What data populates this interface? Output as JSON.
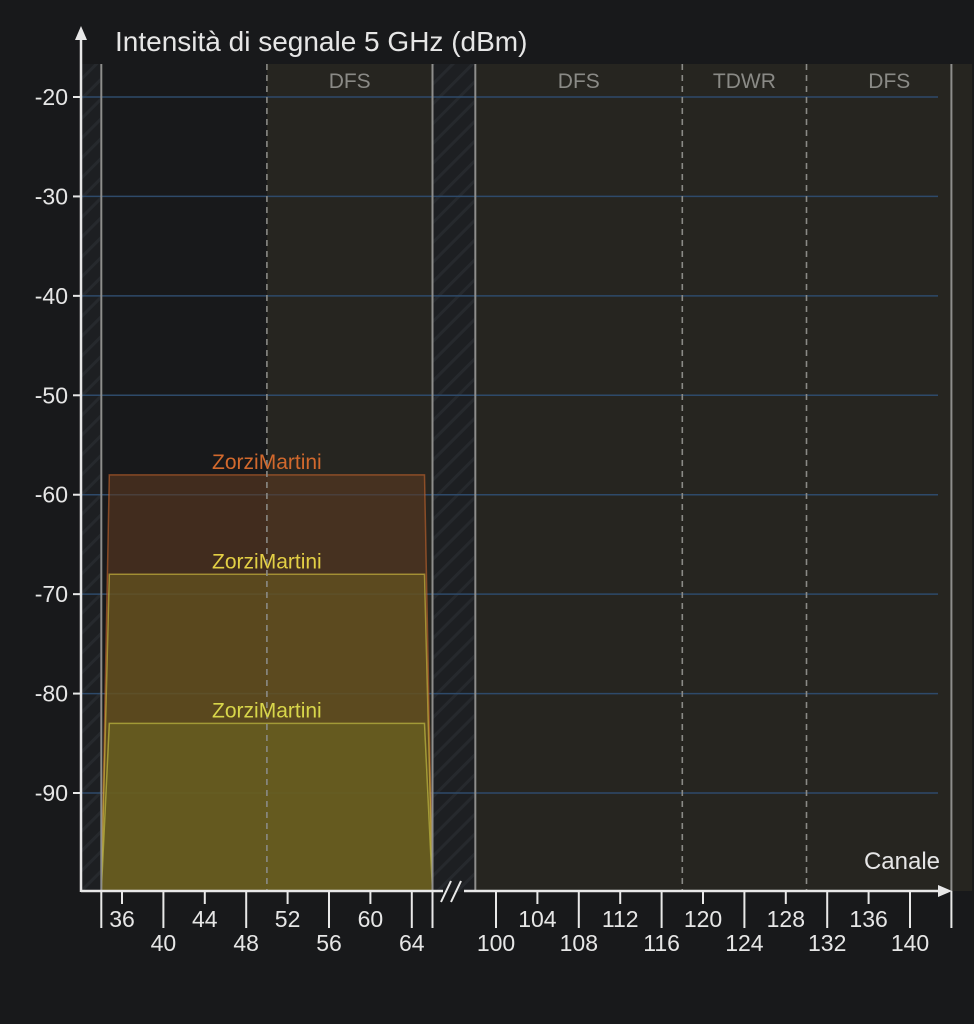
{
  "chart_data": {
    "type": "area",
    "title": "Intensità di segnale 5 GHz (dBm)",
    "xlabel": "Canale",
    "ylabel": "",
    "ylim": [
      -100,
      -17
    ],
    "y_ticks": [
      -20,
      -30,
      -40,
      -50,
      -60,
      -70,
      -80,
      -90
    ],
    "x_axis_break": "//",
    "x_ticks": [
      {
        "label": "36",
        "channel": 36,
        "row": "upper"
      },
      {
        "label": "40",
        "channel": 40,
        "row": "lower"
      },
      {
        "label": "44",
        "channel": 44,
        "row": "upper"
      },
      {
        "label": "48",
        "channel": 48,
        "row": "lower"
      },
      {
        "label": "52",
        "channel": 52,
        "row": "upper"
      },
      {
        "label": "56",
        "channel": 56,
        "row": "lower"
      },
      {
        "label": "60",
        "channel": 60,
        "row": "upper"
      },
      {
        "label": "64",
        "channel": 64,
        "row": "lower"
      },
      {
        "label": "100",
        "channel": 100,
        "row": "lower"
      },
      {
        "label": "104",
        "channel": 104,
        "row": "upper"
      },
      {
        "label": "108",
        "channel": 108,
        "row": "lower"
      },
      {
        "label": "112",
        "channel": 112,
        "row": "upper"
      },
      {
        "label": "116",
        "channel": 116,
        "row": "lower"
      },
      {
        "label": "120",
        "channel": 120,
        "row": "upper"
      },
      {
        "label": "124",
        "channel": 124,
        "row": "lower"
      },
      {
        "label": "128",
        "channel": 128,
        "row": "upper"
      },
      {
        "label": "132",
        "channel": 132,
        "row": "lower"
      },
      {
        "label": "136",
        "channel": 136,
        "row": "upper"
      },
      {
        "label": "140",
        "channel": 140,
        "row": "lower"
      }
    ],
    "bands": [
      {
        "label": "",
        "from": 36,
        "to": 48
      },
      {
        "label": "DFS",
        "from": 52,
        "to": 64
      },
      {
        "label": "DFS",
        "from": 100,
        "to": 116
      },
      {
        "label": "TDWR",
        "from": 120,
        "to": 128
      },
      {
        "label": "DFS",
        "from": 132,
        "to": 144
      }
    ],
    "series": [
      {
        "name": "ZorziMartini",
        "channel_from": 36,
        "channel_to": 64,
        "signal_dbm": -58,
        "color": "#d2692d",
        "fill": "#5a3820"
      },
      {
        "name": "ZorziMartini",
        "channel_from": 36,
        "channel_to": 64,
        "signal_dbm": -68,
        "color": "#e3cf45",
        "fill": "#6a5a1f"
      },
      {
        "name": "ZorziMartini",
        "channel_from": 36,
        "channel_to": 64,
        "signal_dbm": -83,
        "color": "#d8d64a",
        "fill": "#6b6421"
      }
    ],
    "grid": true,
    "legend": "none"
  },
  "colors": {
    "background": "#18191b",
    "band_fill": "#262520",
    "axis": "#e8e8e8",
    "band_label": "#8a8a86",
    "gridline": "#2e4a6a"
  }
}
